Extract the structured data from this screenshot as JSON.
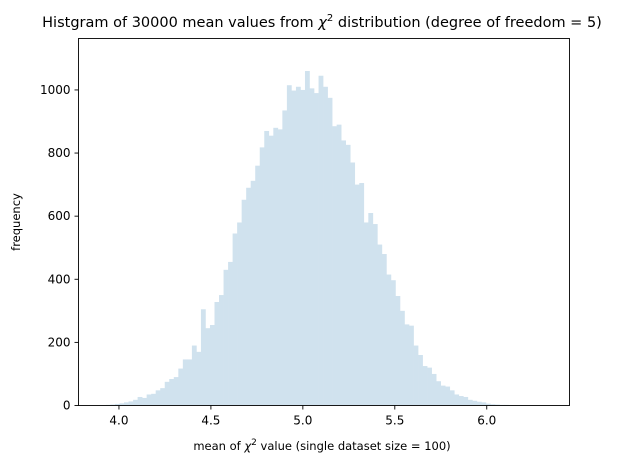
{
  "chart_data": {
    "type": "bar",
    "title_prefix": "Histgram of 30000 mean values from ",
    "title_chi": "χ",
    "title_sup": "2",
    "title_suffix": " distribution (degree of freedom = 5)",
    "xlabel_prefix": "mean of ",
    "xlabel_chi": "χ",
    "xlabel_sup": "2",
    "xlabel_suffix": " value (single dataset size = 100)",
    "ylabel": "frequency",
    "xlim": [
      3.78,
      6.45
    ],
    "ylim": [
      0,
      1163
    ],
    "x_ticks": [
      4.0,
      4.5,
      5.0,
      5.5,
      6.0
    ],
    "x_tick_labels": [
      "4.0",
      "4.5",
      "5.0",
      "5.5",
      "6.0"
    ],
    "y_ticks": [
      0,
      200,
      400,
      600,
      800,
      1000
    ],
    "y_tick_labels": [
      "0",
      "200",
      "400",
      "600",
      "800",
      "1000"
    ],
    "bar_color": "#d0e2ee",
    "grid": false,
    "bin_start": 3.88,
    "bin_width": 0.0246,
    "values": [
      1,
      1,
      2,
      3,
      5,
      7,
      10,
      13,
      18,
      27,
      24,
      35,
      37,
      48,
      55,
      75,
      84,
      90,
      117,
      146,
      146,
      190,
      170,
      305,
      245,
      255,
      328,
      350,
      430,
      455,
      545,
      580,
      652,
      690,
      712,
      760,
      818,
      870,
      855,
      880,
      875,
      935,
      1015,
      998,
      1010,
      1000,
      1060,
      1005,
      990,
      1045,
      1010,
      975,
      885,
      890,
      840,
      826,
      770,
      700,
      705,
      580,
      610,
      575,
      510,
      480,
      415,
      397,
      347,
      300,
      257,
      253,
      190,
      160,
      125,
      120,
      100,
      77,
      63,
      60,
      48,
      35,
      30,
      27,
      18,
      15,
      12,
      10,
      6,
      4,
      3,
      2,
      2,
      1,
      1,
      1
    ]
  }
}
